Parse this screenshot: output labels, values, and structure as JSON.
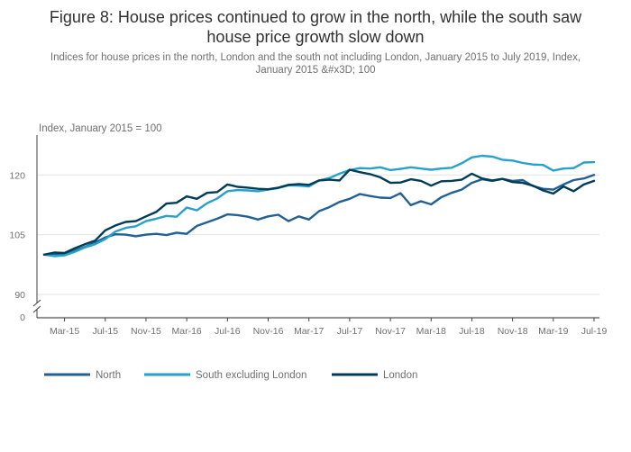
{
  "figure": {
    "title_line1": "Figure 8: House prices continued to grow in the north, while the south saw",
    "title_line2": "house price growth slow down",
    "subtitle": "Indices for house prices in the north, London and the south not including London, January 2015 to July 2019, Index, January 2015 &#x3D; 100"
  },
  "chart_data": {
    "type": "line",
    "title": "Figure 8: House prices continued to grow in the north, while the south saw house price growth slow down",
    "ylabel": "Index, January 2015 = 100",
    "xlabel": "",
    "ylim": [
      90,
      130
    ],
    "y_break": true,
    "yticks": [
      0,
      90,
      105,
      120
    ],
    "x_tick_labels": [
      "Mar-15",
      "Jul-15",
      "Nov-15",
      "Mar-16",
      "Jul-16",
      "Nov-16",
      "Mar-17",
      "Jul-17",
      "Nov-17",
      "Mar-18",
      "Jul-18",
      "Nov-18",
      "Mar-19",
      "Jul-19"
    ],
    "x_tick_month_index": [
      2,
      6,
      10,
      14,
      18,
      22,
      26,
      30,
      34,
      38,
      42,
      46,
      50,
      54
    ],
    "x_range_months": [
      0,
      54
    ],
    "legend_position": "bottom-left",
    "series": [
      {
        "name": "North",
        "color": "#206095",
        "values": [
          100.0,
          100.2,
          100.1,
          101.0,
          101.9,
          103.0,
          104.3,
          105.1,
          105.0,
          104.6,
          105.0,
          105.2,
          104.9,
          105.5,
          105.2,
          107.2,
          108.1,
          109.0,
          110.1,
          109.9,
          109.5,
          108.8,
          109.6,
          110.0,
          108.4,
          109.6,
          108.8,
          110.9,
          111.9,
          113.2,
          114.0,
          115.2,
          114.7,
          114.3,
          114.2,
          115.4,
          112.4,
          113.4,
          112.6,
          114.4,
          115.5,
          116.3,
          118.0,
          118.9,
          118.5,
          119.0,
          118.5,
          118.7,
          117.2,
          116.5,
          116.3,
          117.6,
          118.7,
          119.1,
          120.0
        ]
      },
      {
        "name": "South excluding London",
        "color": "#27a0cc",
        "values": [
          100.0,
          99.6,
          99.8,
          100.7,
          101.8,
          102.6,
          103.9,
          105.8,
          106.7,
          107.1,
          108.4,
          109.0,
          109.7,
          109.5,
          111.8,
          111.1,
          112.9,
          114.1,
          115.9,
          116.2,
          116.1,
          115.9,
          116.3,
          116.7,
          117.4,
          117.3,
          117.1,
          118.6,
          119.2,
          120.3,
          121.2,
          121.7,
          121.6,
          121.9,
          121.2,
          121.5,
          121.9,
          121.6,
          121.3,
          121.6,
          121.8,
          122.9,
          124.4,
          124.8,
          124.6,
          123.8,
          123.6,
          123.0,
          122.6,
          122.5,
          121.1,
          121.6,
          121.7,
          123.1,
          123.2
        ]
      },
      {
        "name": "London",
        "color": "#003c57",
        "values": [
          100.0,
          100.5,
          100.4,
          101.6,
          102.6,
          103.5,
          106.1,
          107.3,
          108.2,
          108.4,
          109.6,
          110.7,
          112.8,
          113.0,
          114.6,
          114.0,
          115.5,
          115.7,
          117.6,
          117.0,
          116.8,
          116.5,
          116.4,
          116.8,
          117.5,
          117.7,
          117.5,
          118.6,
          118.8,
          118.6,
          121.3,
          120.7,
          120.2,
          119.4,
          118.0,
          118.1,
          118.9,
          118.5,
          117.3,
          118.4,
          118.5,
          118.8,
          120.3,
          119.1,
          118.6,
          119.0,
          118.2,
          118.0,
          117.3,
          116.1,
          115.3,
          117.1,
          115.9,
          117.6,
          118.5
        ]
      }
    ]
  }
}
